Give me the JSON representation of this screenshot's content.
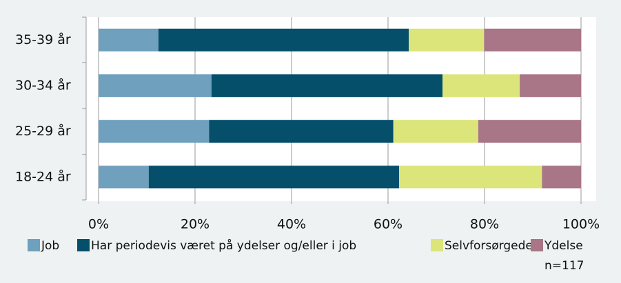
{
  "chart_data": {
    "type": "stacked_barh",
    "categories": [
      "35-39 år",
      "30-34 år",
      "25-29 år",
      "18-24 år"
    ],
    "series": [
      {
        "name": "Job",
        "color": "#6fa0bd",
        "values": [
          12.4,
          23.4,
          22.9,
          10.4
        ]
      },
      {
        "name": "Har periodevis været på ydelser og/eller i job",
        "color": "#054f6b",
        "values": [
          51.9,
          47.9,
          38.2,
          51.9
        ]
      },
      {
        "name": "Selvforsørgede",
        "color": "#dbe57a",
        "values": [
          15.6,
          16.0,
          17.6,
          29.6
        ]
      },
      {
        "name": "Ydelse",
        "color": "#a87686",
        "values": [
          20.1,
          12.7,
          21.3,
          8.1
        ]
      }
    ],
    "xlim": [
      0,
      100
    ],
    "xticks": [
      {
        "value": 0,
        "label": "0%"
      },
      {
        "value": 20,
        "label": "20%"
      },
      {
        "value": 40,
        "label": "40%"
      },
      {
        "value": 60,
        "label": "60%"
      },
      {
        "value": 80,
        "label": "80%"
      },
      {
        "value": 100,
        "label": "100%"
      }
    ],
    "grid": true,
    "annotation": "n=117"
  }
}
